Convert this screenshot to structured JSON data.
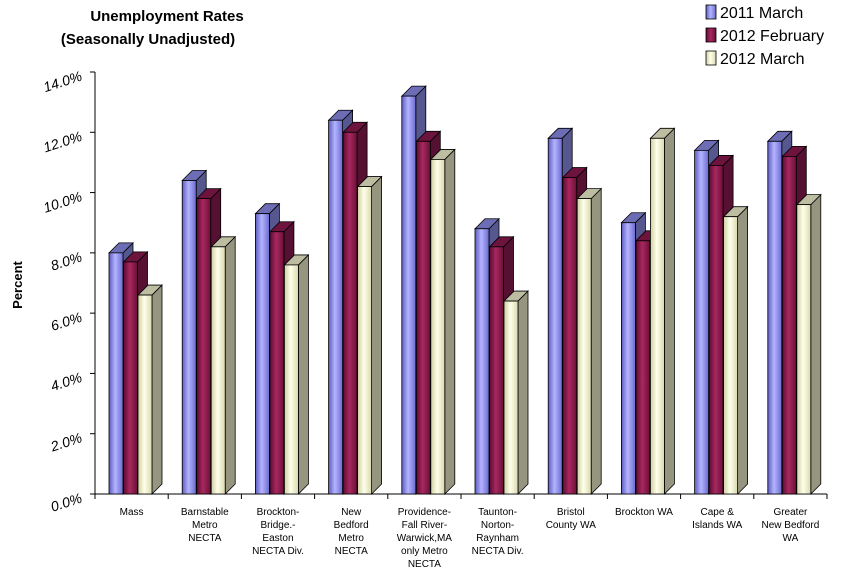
{
  "chart_data": {
    "type": "bar",
    "title_lines": [
      "Unemployment Rates",
      "(Seasonally Unadjusted)"
    ],
    "ylabel": "Percent",
    "xlabel": "",
    "ylim": [
      0,
      14
    ],
    "y_ticks": [
      "0.0%",
      "2.0%",
      "4.0%",
      "6.0%",
      "8.0%",
      "10.0%",
      "12.0%",
      "14.0%"
    ],
    "y_tick_values": [
      0,
      2,
      4,
      6,
      8,
      10,
      12,
      14
    ],
    "legend_position": "top-right",
    "categories": [
      [
        "Mass"
      ],
      [
        "Barnstable",
        "Metro",
        "NECTA"
      ],
      [
        "Brockton-",
        "Bridge.-",
        "Easton",
        "NECTA Div."
      ],
      [
        "New",
        "Bedford",
        "Metro",
        "NECTA"
      ],
      [
        "Providence-",
        "Fall River-",
        "Warwick,MA",
        "only Metro",
        "NECTA"
      ],
      [
        "Taunton-",
        "Norton-",
        "Raynham",
        "NECTA Div."
      ],
      [
        "Bristol",
        "County WA"
      ],
      [
        "Brockton WA"
      ],
      [
        "Cape &",
        "Islands WA"
      ],
      [
        "Greater",
        "New Bedford",
        "WA"
      ]
    ],
    "series": [
      {
        "name": "2011 March",
        "color": "#8c8ce8",
        "values": [
          8.0,
          10.4,
          9.3,
          12.4,
          13.2,
          8.8,
          11.8,
          9.0,
          11.4,
          11.7
        ]
      },
      {
        "name": "2012 February",
        "color": "#8b1a4f",
        "values": [
          7.7,
          9.8,
          8.7,
          12.0,
          11.7,
          8.2,
          10.5,
          8.4,
          10.9,
          11.2
        ]
      },
      {
        "name": "2012 March",
        "color": "#f2f2cf",
        "values": [
          6.6,
          8.2,
          7.6,
          10.2,
          11.1,
          6.4,
          9.8,
          11.8,
          9.2,
          9.6
        ]
      }
    ]
  }
}
